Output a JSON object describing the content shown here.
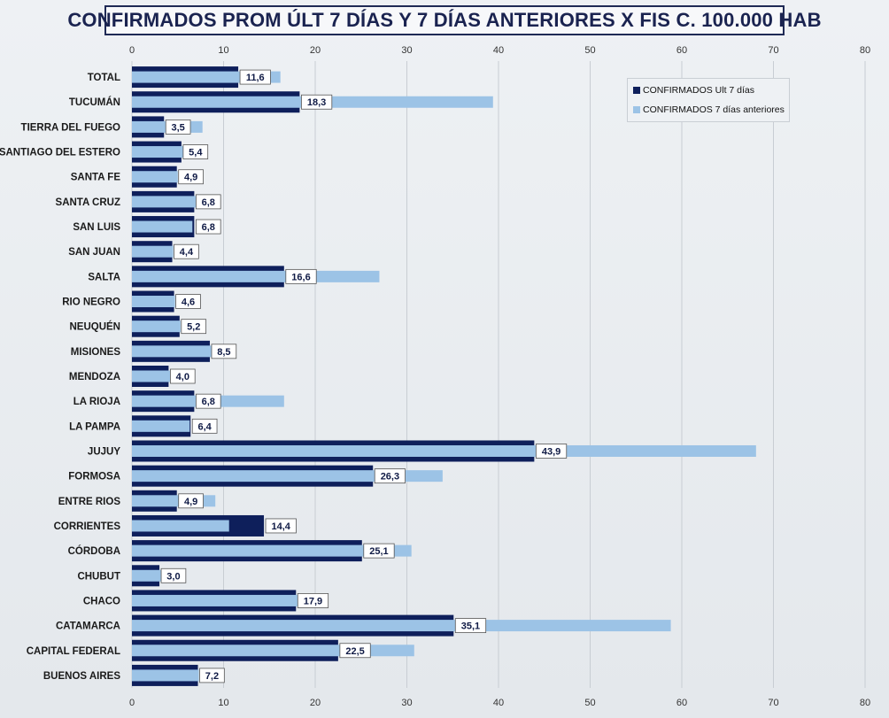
{
  "colors": {
    "current": "#0e1f5b",
    "previous": "#9cc3e6",
    "grid": "#c8cdd3"
  },
  "chart_data": {
    "type": "bar",
    "orientation": "horizontal",
    "title": "CONFIRMADOS PROM ÚLT 7 DÍAS Y 7 DÍAS ANTERIORES X FIS C. 100.000 HAB",
    "xlim": [
      0,
      80
    ],
    "xticks": [
      "0",
      "10",
      "20",
      "30",
      "40",
      "50",
      "60",
      "70",
      "80"
    ],
    "grid": true,
    "legend_position": "top-right",
    "categories": [
      "TOTAL",
      "TUCUMÁN",
      "TIERRA  DEL FUEGO",
      "SANTIAGO  DEL ESTERO",
      "SANTA  FE",
      "SANTA  CRUZ",
      "SAN LUIS",
      "SAN JUAN",
      "SALTA",
      "RIO NEGRO",
      "NEUQUÉN",
      "MISIONES",
      "MENDOZA",
      "LA RIOJA",
      "LA PAMPA",
      "JUJUY",
      "FORMOSA",
      "ENTRE RIOS",
      "CORRIENTES",
      "CÓRDOBA",
      "CHUBUT",
      "CHACO",
      "CATAMARCA",
      "CAPITAL FEDERAL",
      "BUENOS  AIRES"
    ],
    "series": [
      {
        "name": "CONFIRMADOS Ult 7 días",
        "values": [
          11.6,
          18.3,
          3.5,
          5.4,
          4.9,
          6.8,
          6.8,
          4.4,
          16.6,
          4.6,
          5.2,
          8.5,
          4.0,
          6.8,
          6.4,
          43.9,
          26.3,
          4.9,
          14.4,
          25.1,
          3.0,
          17.9,
          35.1,
          22.5,
          7.2
        ],
        "labels": [
          "11,6",
          "18,3",
          "3,5",
          "5,4",
          "4,9",
          "6,8",
          "6,8",
          "4,4",
          "16,6",
          "4,6",
          "5,2",
          "8,5",
          "4,0",
          "6,8",
          "6,4",
          "43,9",
          "26,3",
          "4,9",
          "14,4",
          "25,1",
          "3,0",
          "17,9",
          "35,1",
          "22,5",
          "7,2"
        ]
      },
      {
        "name": "CONFIRMADOS 7 días anteriores",
        "values": [
          16.2,
          39.4,
          7.7,
          5.8,
          5.0,
          7.2,
          6.6,
          4.5,
          27.0,
          4.7,
          5.3,
          8.8,
          4.2,
          16.6,
          6.3,
          68.1,
          33.9,
          9.1,
          10.6,
          30.5,
          3.2,
          18.2,
          58.8,
          30.8,
          7.3
        ]
      }
    ]
  }
}
